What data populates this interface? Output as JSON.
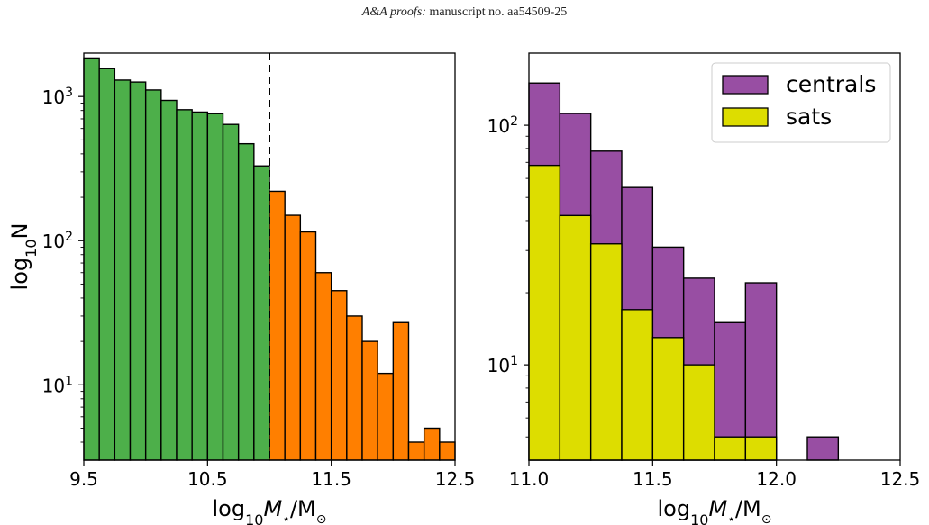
{
  "header": {
    "journal": "A&A proofs:",
    "manuscript": "manuscript no. aa54509-25"
  },
  "colors": {
    "low": "#4daf4a",
    "high": "#ff7f00",
    "centrals": "#984ea3",
    "sats": "#dddd00",
    "edge": "#000000"
  },
  "chart_data": [
    {
      "type": "bar",
      "subtype": "histogram",
      "xlabel": "log10M⋆/M⊙",
      "ylabel": "log10N",
      "xlim": [
        9.5,
        12.5
      ],
      "ylim": [
        3,
        2000
      ],
      "yscale": "log",
      "bin_width": 0.125,
      "xticks": [
        {
          "v": 9.5,
          "label": "9.5"
        },
        {
          "v": 10.5,
          "label": "10.5"
        },
        {
          "v": 11.5,
          "label": "11.5"
        },
        {
          "v": 12.5,
          "label": "12.5"
        }
      ],
      "yticks": [
        {
          "v": 10,
          "exp": "1"
        },
        {
          "v": 100,
          "exp": "2"
        },
        {
          "v": 1000,
          "exp": "3"
        }
      ],
      "cut": 11.0,
      "series": [
        {
          "color_key": "low",
          "x": [
            9.5,
            9.625,
            9.75,
            9.875,
            10.0,
            10.125,
            10.25,
            10.375,
            10.5,
            10.625,
            10.75,
            10.875
          ],
          "values": [
            1850,
            1560,
            1300,
            1260,
            1110,
            940,
            810,
            780,
            760,
            640,
            470,
            330
          ]
        },
        {
          "color_key": "high",
          "x": [
            11.0,
            11.125,
            11.25,
            11.375,
            11.5,
            11.625,
            11.75,
            11.875,
            12.0,
            12.125,
            12.25,
            12.375
          ],
          "values": [
            220,
            150,
            115,
            60,
            45,
            30,
            20,
            12,
            27,
            4,
            5,
            4
          ]
        }
      ]
    },
    {
      "type": "bar",
      "subtype": "histogram",
      "xlabel": "log10M⋆/M⊙",
      "xlim": [
        11.0,
        12.5
      ],
      "ylim": [
        4,
        200
      ],
      "yscale": "log",
      "bin_width": 0.125,
      "xticks": [
        {
          "v": 11.0,
          "label": "11.0"
        },
        {
          "v": 11.5,
          "label": "11.5"
        },
        {
          "v": 12.0,
          "label": "12.0"
        },
        {
          "v": 12.5,
          "label": "12.5"
        }
      ],
      "yticks": [
        {
          "v": 10,
          "exp": "1"
        },
        {
          "v": 100,
          "exp": "2"
        }
      ],
      "legend": {
        "position": "top-right",
        "entries": [
          "centrals",
          "sats"
        ]
      },
      "series": [
        {
          "name": "centrals",
          "color_key": "centrals",
          "x": [
            11.0,
            11.125,
            11.25,
            11.375,
            11.5,
            11.625,
            11.75,
            11.875,
            12.0,
            12.125,
            12.25
          ],
          "values": [
            150,
            112,
            78,
            55,
            31,
            23,
            15,
            22,
            4,
            5,
            4
          ]
        },
        {
          "name": "sats",
          "color_key": "sats",
          "x": [
            11.0,
            11.125,
            11.25,
            11.375,
            11.5,
            11.625,
            11.75,
            11.875
          ],
          "values": [
            68,
            42,
            32,
            17,
            13,
            10,
            5,
            5
          ]
        }
      ]
    }
  ]
}
